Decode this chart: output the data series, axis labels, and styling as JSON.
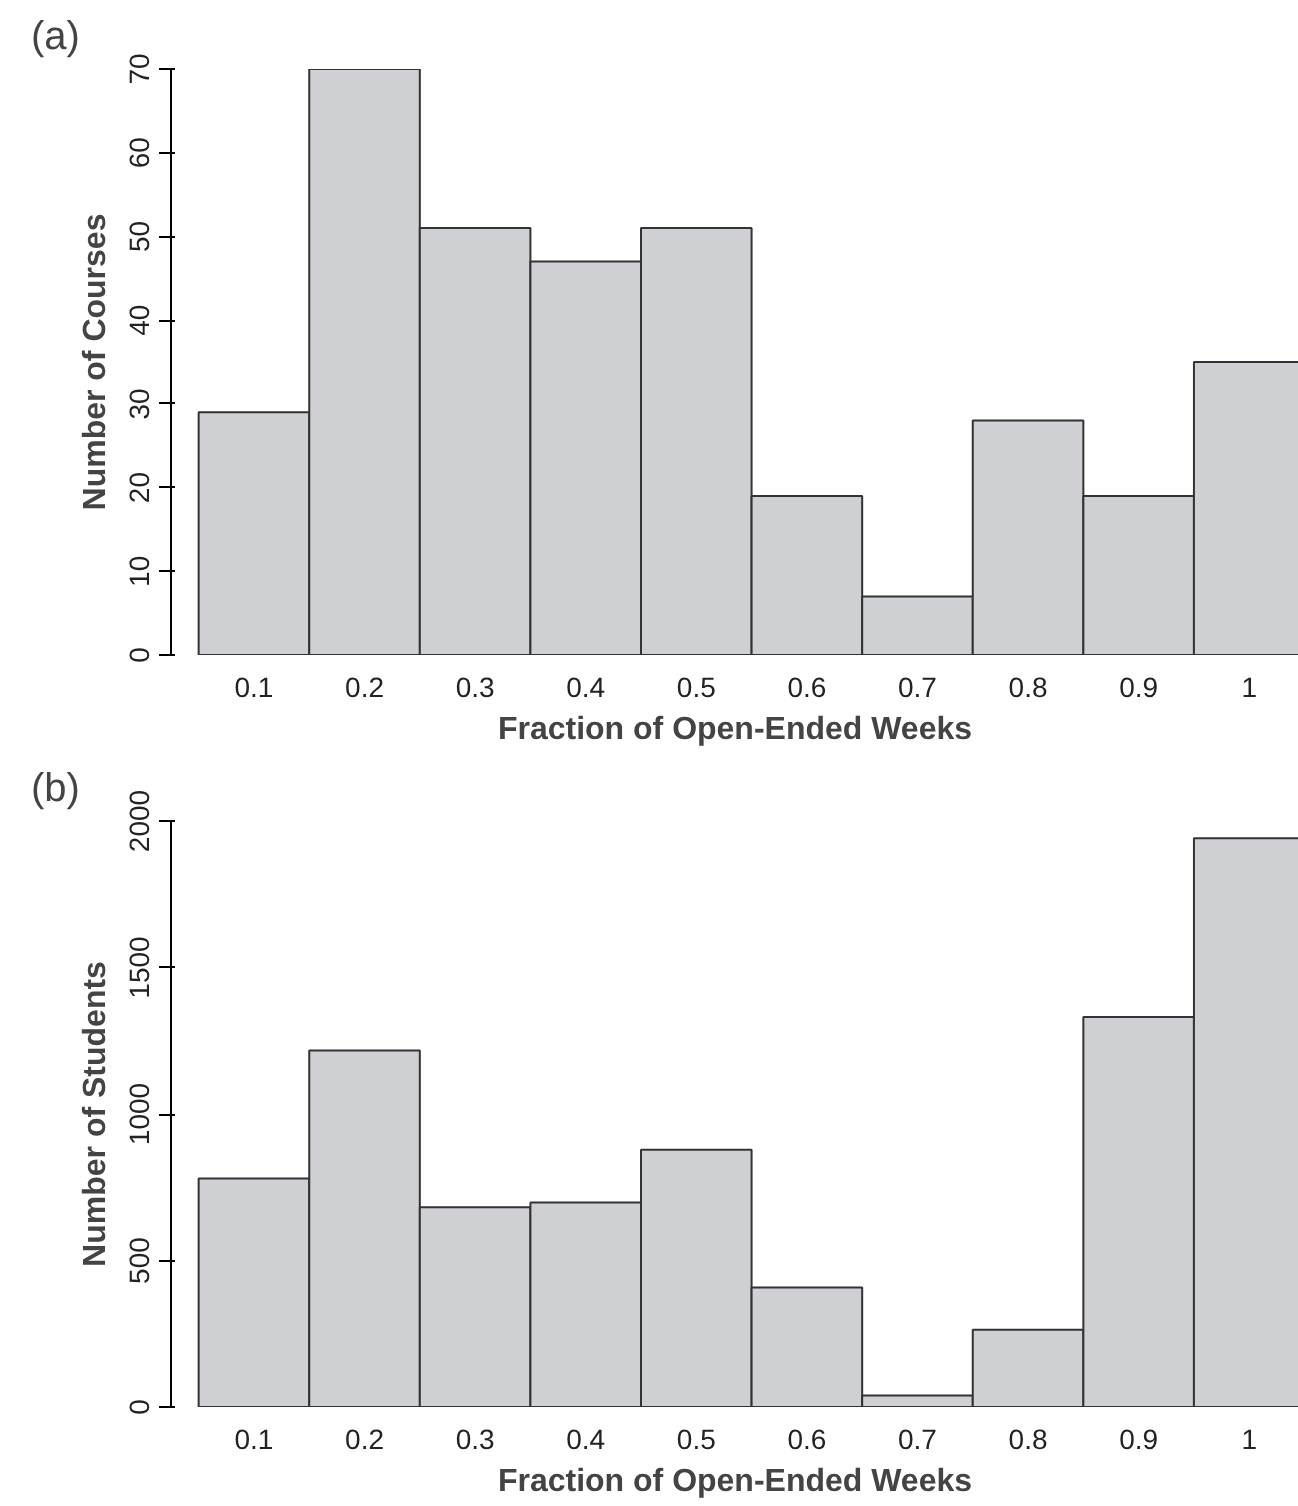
{
  "chart_data": [
    {
      "type": "bar",
      "title": "(a)",
      "xlabel": "Fraction of Open-Ended Weeks",
      "ylabel": "Number of Courses",
      "categories": [
        "0.1",
        "0.2",
        "0.3",
        "0.4",
        "0.5",
        "0.6",
        "0.7",
        "0.8",
        "0.9",
        "1"
      ],
      "values": [
        29,
        70,
        51,
        47,
        51,
        19,
        7,
        28,
        19,
        35
      ],
      "color": "#cfd0d3",
      "ylim": [
        0,
        70
      ],
      "yticks": [
        0,
        10,
        20,
        30,
        40,
        50,
        60,
        70
      ],
      "grid": false
    },
    {
      "type": "bar",
      "title": "(b)",
      "xlabel": "Fraction of Open-Ended Weeks",
      "ylabel": "Number of Students",
      "categories": [
        "0.1",
        "0.2",
        "0.3",
        "0.4",
        "0.5",
        "0.6",
        "0.7",
        "0.8",
        "0.9",
        "1"
      ],
      "values": [
        780,
        1217,
        682,
        698,
        878,
        408,
        39,
        264,
        1331,
        1941
      ],
      "color": "#cfd0d3",
      "ylim": [
        0,
        2000
      ],
      "yticks": [
        0,
        500,
        1000,
        1500,
        2000
      ],
      "grid": false
    }
  ]
}
